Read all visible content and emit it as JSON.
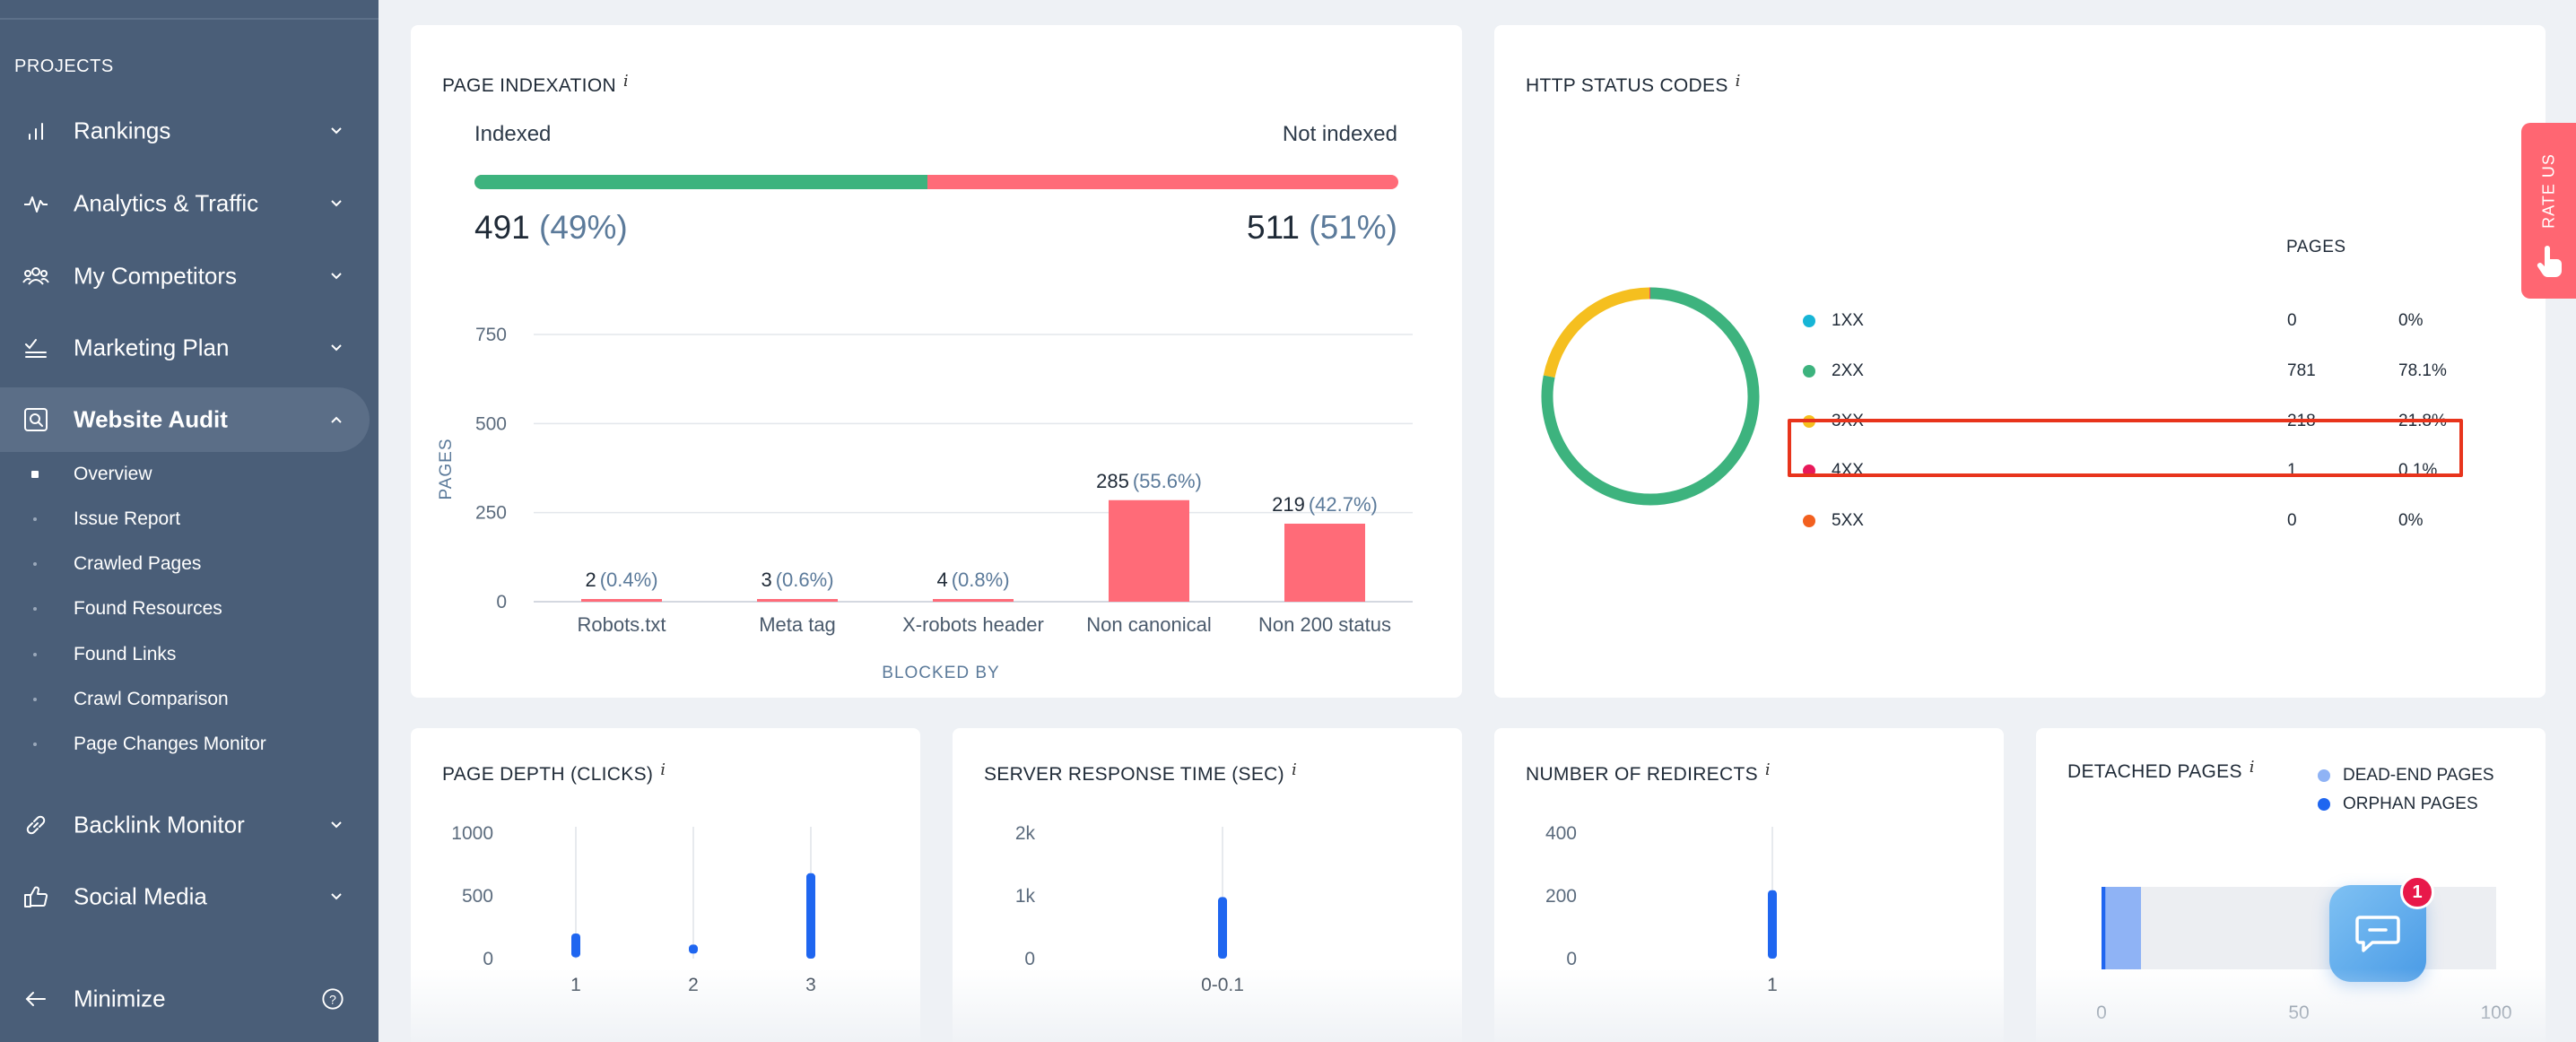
{
  "sidebar": {
    "section_label": "PROJECTS",
    "items": [
      {
        "label": "Rankings",
        "icon": "bar-chart-icon"
      },
      {
        "label": "Analytics & Traffic",
        "icon": "pulse-icon"
      },
      {
        "label": "My Competitors",
        "icon": "users-icon"
      },
      {
        "label": "Marketing Plan",
        "icon": "checklist-icon"
      },
      {
        "label": "Website Audit",
        "icon": "audit-icon",
        "active": true
      },
      {
        "label": "Backlink Monitor",
        "icon": "link-icon"
      },
      {
        "label": "Social Media",
        "icon": "thumbs-up-icon"
      }
    ],
    "subitems": [
      {
        "label": "Overview",
        "active": true
      },
      {
        "label": "Issue Report"
      },
      {
        "label": "Crawled Pages"
      },
      {
        "label": "Found Resources"
      },
      {
        "label": "Found Links"
      },
      {
        "label": "Crawl Comparison"
      },
      {
        "label": "Page Changes Monitor"
      }
    ],
    "minimize_label": "Minimize"
  },
  "colors": {
    "green": "#3db37e",
    "red": "#ff6b78",
    "blue": "#1f66f0",
    "yellow": "#f5bf1f",
    "cyan": "#17b5d6",
    "pink": "#e8195a",
    "orange": "#f2601f",
    "sidebar": "#4a5e78",
    "highlight": "#e8341c"
  },
  "page_indexation": {
    "title": "PAGE INDEXATION",
    "info": "i",
    "indexed_label": "Indexed",
    "not_indexed_label": "Not indexed",
    "indexed_fraction": 0.49,
    "indexed_count": "491",
    "indexed_pct": "(49%)",
    "not_indexed_count": "511",
    "not_indexed_pct": "(51%)"
  },
  "http_status": {
    "title": "HTTP STATUS CODES",
    "info": "i",
    "pages_header": "PAGES",
    "rows": [
      {
        "code": "1XX",
        "pages": "0",
        "pct": "0%",
        "color": "#17b5d6"
      },
      {
        "code": "2XX",
        "pages": "781",
        "pct": "78.1%",
        "color": "#3db37e"
      },
      {
        "code": "3XX",
        "pages": "218",
        "pct": "21.8%",
        "color": "#f5bf1f"
      },
      {
        "code": "4XX",
        "pages": "1",
        "pct": "0.1%",
        "color": "#e8195a",
        "highlighted": true
      },
      {
        "code": "5XX",
        "pages": "0",
        "pct": "0%",
        "color": "#f2601f"
      }
    ]
  },
  "page_depth": {
    "title": "PAGE DEPTH (CLICKS)",
    "info": "i"
  },
  "server_response": {
    "title": "SERVER RESPONSE TIME (SEC)",
    "info": "i"
  },
  "redirects": {
    "title": "NUMBER OF REDIRECTS",
    "info": "i"
  },
  "detached": {
    "title": "DETACHED PAGES",
    "info": "i",
    "legend": [
      {
        "label": "DEAD-END PAGES",
        "color": "#8fb3f5"
      },
      {
        "label": "ORPHAN PAGES",
        "color": "#1f66f0"
      }
    ]
  },
  "rate_us": "RATE US",
  "chat": {
    "badge": "1"
  },
  "chart_data": [
    {
      "id": "blocked_by",
      "type": "bar",
      "xlabel": "BLOCKED BY",
      "ylabel": "PAGES",
      "ylim": [
        0,
        750
      ],
      "yticks": [
        "0",
        "250",
        "500",
        "750"
      ],
      "categories": [
        "Robots.txt",
        "Meta tag",
        "X-robots header",
        "Non canonical",
        "Non 200 status"
      ],
      "values": [
        2,
        3,
        4,
        285,
        219
      ],
      "value_labels": [
        "2",
        "3",
        "4",
        "285",
        "219"
      ],
      "pct_labels": [
        "(0.4%)",
        "(0.6%)",
        "(0.8%)",
        "(55.6%)",
        "(42.7%)"
      ],
      "grid": true
    },
    {
      "id": "http_status_donut",
      "type": "pie",
      "categories": [
        "1XX",
        "2XX",
        "3XX",
        "4XX",
        "5XX"
      ],
      "values": [
        0,
        781,
        218,
        1,
        0
      ]
    },
    {
      "id": "page_depth",
      "type": "bar",
      "categories": [
        "1",
        "2",
        "3"
      ],
      "ylim": [
        0,
        1000
      ],
      "yticks": [
        "0",
        "500",
        "1000"
      ],
      "ranges": [
        [
          10,
          200
        ],
        [
          40,
          80
        ],
        [
          0,
          680
        ]
      ]
    },
    {
      "id": "server_response",
      "type": "bar",
      "categories": [
        "0-0.1"
      ],
      "ylim": [
        0,
        2000
      ],
      "yticks": [
        "0",
        "1k",
        "2k"
      ],
      "ranges": [
        [
          0,
          980
        ]
      ]
    },
    {
      "id": "redirects",
      "type": "bar",
      "categories": [
        "1"
      ],
      "ylim": [
        0,
        400
      ],
      "yticks": [
        "0",
        "200",
        "400"
      ],
      "ranges": [
        [
          0,
          218
        ]
      ]
    },
    {
      "id": "detached",
      "type": "bar",
      "xlim": [
        0,
        100
      ],
      "xticks": [
        "0",
        "50",
        "100"
      ],
      "series": [
        {
          "name": "ORPHAN PAGES",
          "value": 1
        },
        {
          "name": "DEAD-END PAGES",
          "value": 9
        }
      ]
    }
  ]
}
